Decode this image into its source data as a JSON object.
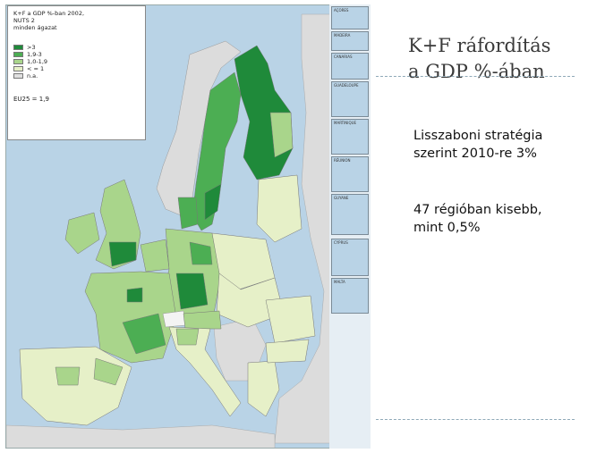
{
  "title_lines": [
    "K+F ráfordítás",
    "a GDP %-ában"
  ],
  "legend": {
    "title_lines": [
      "K+F a GDP %-ban 2002,",
      "NUTS 2",
      "minden ágazat"
    ],
    "items": [
      {
        "label": ">3",
        "color": "#1f8a3a"
      },
      {
        "label": "1,9-3",
        "color": "#4cae53"
      },
      {
        "label": "1,0-1,9",
        "color": "#a9d58b"
      },
      {
        "label": "< = 1",
        "color": "#e6f0c8"
      },
      {
        "label": "n.a.",
        "color": "#e0e0e0"
      }
    ],
    "eu_note": "EU25 = 1,9"
  },
  "text_block_1": [
    "Lisszaboni stratégia",
    "szerint 2010-re 3%"
  ],
  "text_block_2": [
    "47 régióban kisebb,",
    "mint 0,5%"
  ],
  "inset_labels": [
    "AÇORES",
    "MADEIRA",
    "CANARIAS",
    "GUADELOUPE",
    "MARTINIQUE",
    "RÉUNION",
    "GUYANE",
    "CYPRUS",
    "MALTA"
  ],
  "colors": {
    "sea": "#b9d3e6",
    "very_high": "#1f8a3a",
    "high": "#4cae53",
    "medium": "#a9d58b",
    "low": "#e6f0c8",
    "na": "#e0e0e0",
    "non_eu": "#dcdcdc"
  }
}
